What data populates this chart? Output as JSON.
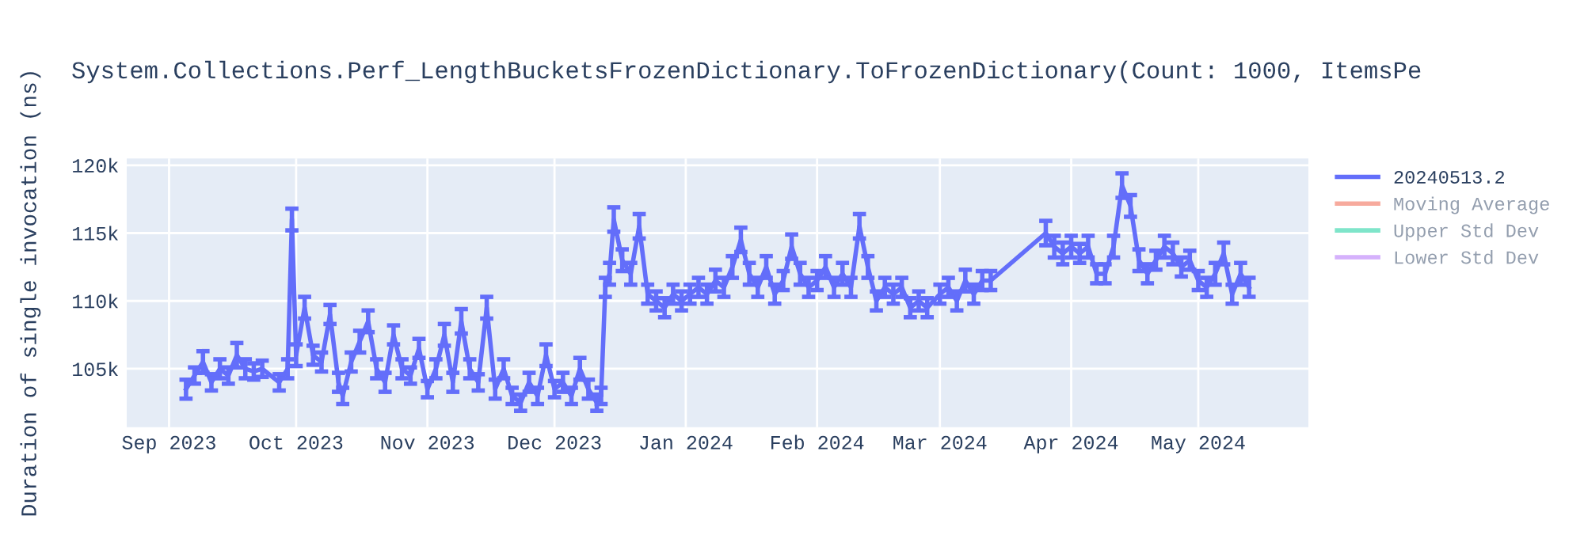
{
  "chart_data": {
    "type": "line",
    "title": "System.Collections.Perf_LengthBucketsFrozenDictionary.ToFrozenDictionary(Count: 1000, ItemsPe",
    "ylabel": "Duration of single invocation (ns)",
    "xlim": [
      "2023-08-22",
      "2024-05-27"
    ],
    "ylim": [
      100700,
      120500
    ],
    "xticks": [
      {
        "value": "2023-09-01",
        "label": "Sep 2023"
      },
      {
        "value": "2023-10-01",
        "label": "Oct 2023"
      },
      {
        "value": "2023-11-01",
        "label": "Nov 2023"
      },
      {
        "value": "2023-12-01",
        "label": "Dec 2023"
      },
      {
        "value": "2024-01-01",
        "label": "Jan 2024"
      },
      {
        "value": "2024-02-01",
        "label": "Feb 2024"
      },
      {
        "value": "2024-03-01",
        "label": "Mar 2024"
      },
      {
        "value": "2024-04-01",
        "label": "Apr 2024"
      },
      {
        "value": "2024-05-01",
        "label": "May 2024"
      }
    ],
    "yticks": [
      {
        "value": 105000,
        "label": "105k"
      },
      {
        "value": 110000,
        "label": "110k"
      },
      {
        "value": 115000,
        "label": "115k"
      },
      {
        "value": 120000,
        "label": "120k"
      }
    ],
    "grid": true,
    "legend": "top right",
    "marker": "none",
    "line_style": "solid",
    "series": [
      {
        "name": "20240513.2",
        "color": "#636efa",
        "x": [
          "2023-09-05",
          "2023-09-07",
          "2023-09-09",
          "2023-09-11",
          "2023-09-13",
          "2023-09-15",
          "2023-09-17",
          "2023-09-19",
          "2023-09-21",
          "2023-09-23",
          "2023-09-27",
          "2023-09-29",
          "2023-09-30",
          "2023-10-01",
          "2023-10-03",
          "2023-10-05",
          "2023-10-07",
          "2023-10-09",
          "2023-10-11",
          "2023-10-12",
          "2023-10-14",
          "2023-10-16",
          "2023-10-18",
          "2023-10-20",
          "2023-10-22",
          "2023-10-24",
          "2023-10-26",
          "2023-10-28",
          "2023-10-30",
          "2023-11-01",
          "2023-11-03",
          "2023-11-05",
          "2023-11-07",
          "2023-11-09",
          "2023-11-11",
          "2023-11-13",
          "2023-11-15",
          "2023-11-17",
          "2023-11-19",
          "2023-11-21",
          "2023-11-23",
          "2023-11-25",
          "2023-11-27",
          "2023-11-29",
          "2023-12-01",
          "2023-12-03",
          "2023-12-05",
          "2023-12-07",
          "2023-12-09",
          "2023-12-11",
          "2023-12-12",
          "2023-12-13",
          "2023-12-14",
          "2023-12-15",
          "2023-12-17",
          "2023-12-19",
          "2023-12-21",
          "2023-12-23",
          "2023-12-25",
          "2023-12-27",
          "2023-12-29",
          "2023-12-31",
          "2024-01-02",
          "2024-01-04",
          "2024-01-06",
          "2024-01-08",
          "2024-01-10",
          "2024-01-12",
          "2024-01-14",
          "2024-01-16",
          "2024-01-18",
          "2024-01-20",
          "2024-01-22",
          "2024-01-24",
          "2024-01-26",
          "2024-01-28",
          "2024-01-30",
          "2024-02-01",
          "2024-02-03",
          "2024-02-05",
          "2024-02-07",
          "2024-02-09",
          "2024-02-11",
          "2024-02-13",
          "2024-02-15",
          "2024-02-17",
          "2024-02-19",
          "2024-02-21",
          "2024-02-23",
          "2024-02-25",
          "2024-02-27",
          "2024-03-01",
          "2024-03-03",
          "2024-03-05",
          "2024-03-07",
          "2024-03-09",
          "2024-03-11",
          "2024-03-13",
          "2024-03-26",
          "2024-03-28",
          "2024-03-30",
          "2024-04-01",
          "2024-04-03",
          "2024-04-05",
          "2024-04-07",
          "2024-04-09",
          "2024-04-11",
          "2024-04-13",
          "2024-04-15",
          "2024-04-17",
          "2024-04-19",
          "2024-04-21",
          "2024-04-23",
          "2024-04-25",
          "2024-04-27",
          "2024-04-29",
          "2024-05-01",
          "2024-05-03",
          "2024-05-05",
          "2024-05-07",
          "2024-05-09",
          "2024-05-11",
          "2024-05-13"
        ],
        "values": [
          103500,
          104500,
          105500,
          104000,
          105000,
          104500,
          106000,
          105000,
          104800,
          105000,
          104000,
          105000,
          116000,
          106000,
          109500,
          106000,
          105500,
          109000,
          104000,
          103000,
          105500,
          107000,
          108500,
          105000,
          104000,
          107500,
          105000,
          104500,
          106500,
          103500,
          105000,
          107500,
          104000,
          108500,
          105000,
          104000,
          109500,
          103500,
          105000,
          103000,
          102500,
          104000,
          103000,
          106000,
          103500,
          104000,
          103000,
          105000,
          103500,
          102500,
          103000,
          111000,
          112000,
          116000,
          113000,
          112000,
          115500,
          110500,
          110000,
          109500,
          110500,
          110000,
          110500,
          111000,
          110500,
          111500,
          111000,
          112500,
          114500,
          112000,
          111000,
          112500,
          110500,
          111500,
          114000,
          112000,
          111000,
          111500,
          112500,
          111000,
          112000,
          111000,
          115500,
          112500,
          110000,
          111000,
          110500,
          111000,
          109500,
          110000,
          109500,
          110500,
          111000,
          110000,
          111500,
          110500,
          111500,
          111500,
          115000,
          114000,
          113500,
          114000,
          113500,
          114000,
          112000,
          112000,
          114000,
          118500,
          117000,
          113000,
          112000,
          113000,
          114000,
          113500,
          112500,
          113000,
          111500,
          111000,
          112000,
          113500,
          110500,
          112000,
          111000
        ],
        "errors": [
          700,
          600,
          800,
          600,
          700,
          600,
          900,
          700,
          600,
          600,
          600,
          700,
          800,
          800,
          800,
          700,
          700,
          700,
          700,
          600,
          700,
          800,
          800,
          700,
          700,
          700,
          700,
          600,
          700,
          600,
          700,
          800,
          700,
          900,
          700,
          600,
          800,
          700,
          700,
          600,
          600,
          700,
          600,
          800,
          600,
          700,
          600,
          800,
          700,
          600,
          600,
          700,
          800,
          900,
          800,
          800,
          900,
          700,
          700,
          700,
          700,
          700,
          700,
          700,
          700,
          800,
          700,
          800,
          900,
          800,
          700,
          800,
          700,
          700,
          900,
          800,
          700,
          700,
          800,
          700,
          800,
          700,
          900,
          800,
          700,
          700,
          700,
          700,
          700,
          700,
          700,
          700,
          700,
          700,
          800,
          700,
          700,
          700,
          900,
          800,
          800,
          800,
          700,
          800,
          700,
          700,
          800,
          900,
          800,
          800,
          700,
          700,
          800,
          800,
          700,
          700,
          700,
          700,
          800,
          800,
          700,
          800,
          700
        ]
      },
      {
        "name": "Moving Average",
        "color": "#ef553b"
      },
      {
        "name": "Upper Std Dev",
        "color": "#00cc96"
      },
      {
        "name": "Lower Std Dev",
        "color": "#ab63fa"
      }
    ]
  }
}
